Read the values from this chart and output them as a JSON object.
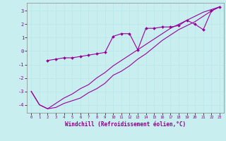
{
  "xlabel": "Windchill (Refroidissement éolien,°C)",
  "background_color": "#c8eef0",
  "line_color": "#990099",
  "grid_color": "#b8e8e8",
  "xlim": [
    -0.5,
    23.5
  ],
  "ylim": [
    -4.6,
    3.6
  ],
  "yticks": [
    -4,
    -3,
    -2,
    -1,
    0,
    1,
    2,
    3
  ],
  "xticks": [
    0,
    1,
    2,
    3,
    4,
    5,
    6,
    7,
    8,
    9,
    10,
    11,
    12,
    13,
    14,
    15,
    16,
    17,
    18,
    19,
    20,
    21,
    22,
    23
  ],
  "line1_x": [
    0,
    1,
    2,
    3,
    4,
    5,
    6,
    7,
    8,
    9,
    10,
    11,
    12,
    13,
    14,
    15,
    16,
    17,
    18,
    19,
    20,
    21,
    22,
    23
  ],
  "line1_y": [
    -3.0,
    -4.0,
    -4.3,
    -4.2,
    -3.9,
    -3.7,
    -3.5,
    -3.1,
    -2.8,
    -2.4,
    -1.8,
    -1.5,
    -1.1,
    -0.6,
    -0.2,
    0.3,
    0.8,
    1.2,
    1.6,
    1.9,
    2.2,
    2.6,
    3.0,
    3.3
  ],
  "line2_x": [
    2,
    3,
    4,
    5,
    6,
    7,
    8,
    9,
    10,
    11,
    12,
    13,
    14,
    15,
    16,
    17,
    18,
    19,
    20,
    21,
    22,
    23
  ],
  "line2_y": [
    -0.7,
    -0.6,
    -0.5,
    -0.5,
    -0.4,
    -0.3,
    -0.2,
    -0.1,
    1.1,
    1.3,
    1.3,
    0.1,
    1.7,
    1.7,
    1.8,
    1.8,
    1.9,
    2.3,
    2.0,
    1.6,
    3.0,
    3.3
  ],
  "line3_x": [
    0,
    1,
    2,
    3,
    4,
    5,
    6,
    7,
    8,
    9,
    10,
    11,
    12,
    13,
    14,
    15,
    16,
    17,
    18,
    19,
    20,
    21,
    22,
    23
  ],
  "line3_y": [
    -3.0,
    -4.0,
    -4.3,
    -3.9,
    -3.5,
    -3.2,
    -2.8,
    -2.5,
    -2.0,
    -1.6,
    -1.1,
    -0.7,
    -0.3,
    0.1,
    0.5,
    0.9,
    1.3,
    1.7,
    2.0,
    2.3,
    2.6,
    2.9,
    3.1,
    3.3
  ]
}
